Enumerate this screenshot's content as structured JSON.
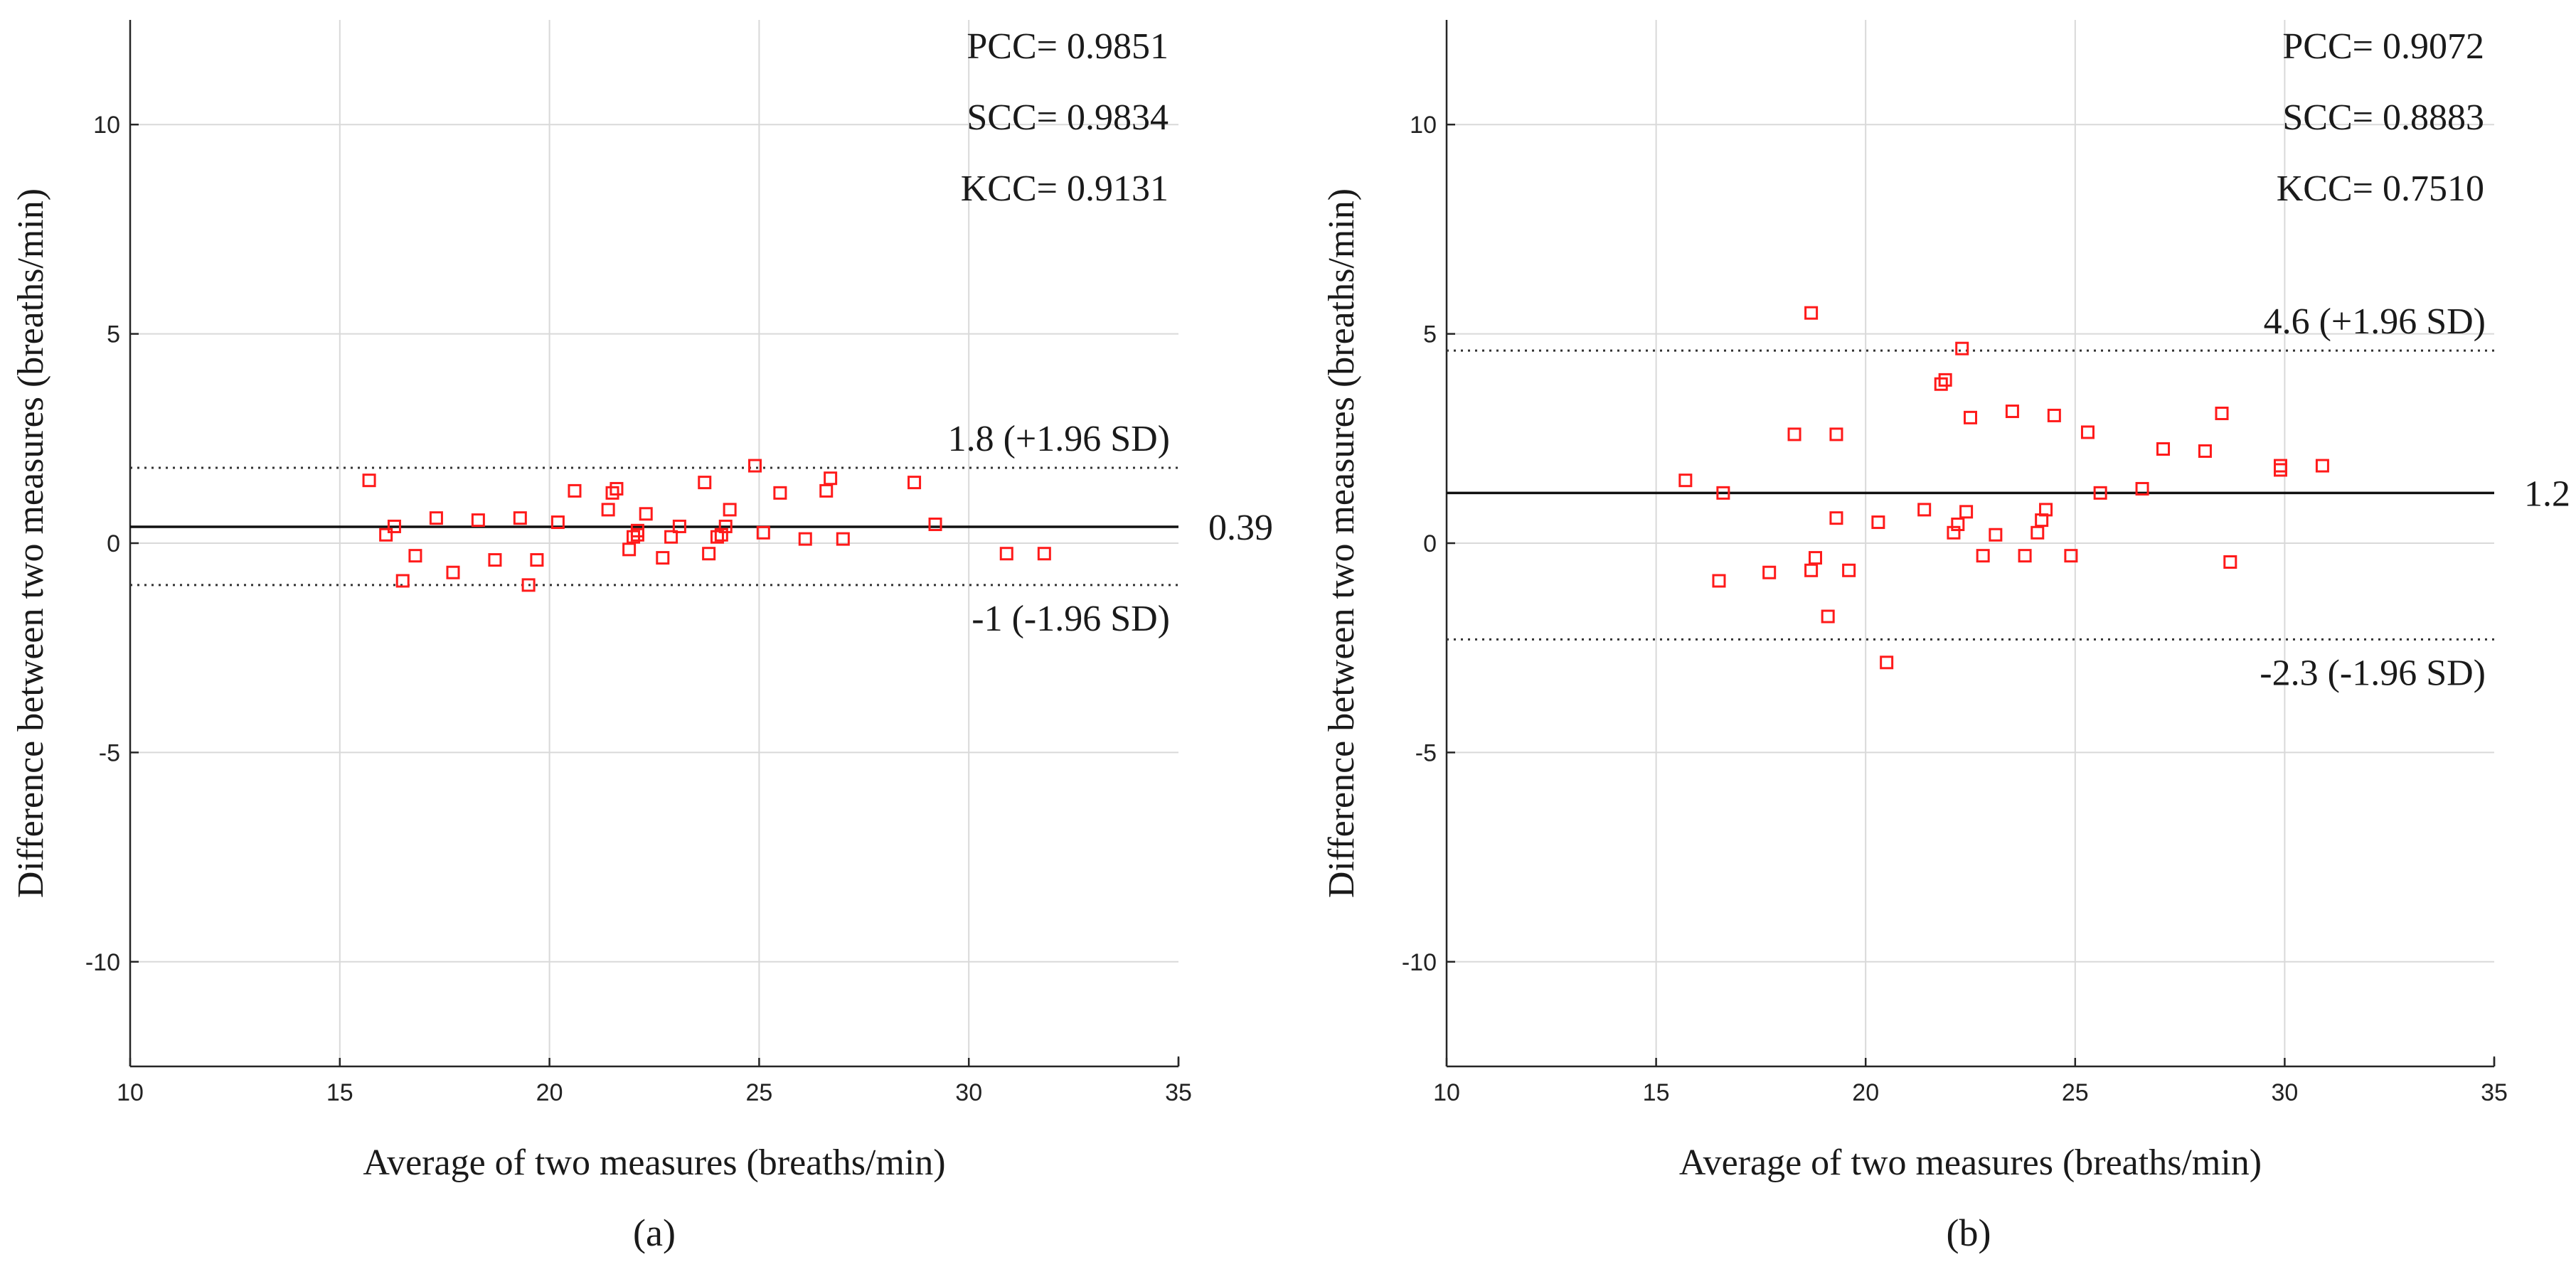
{
  "chart_data": [
    {
      "type": "scatter",
      "panel_label": "(a)",
      "xlabel": "Average of two measures (breaths/min)",
      "ylabel": "Difference between two measures (breaths/min)",
      "xlim": [
        10,
        35
      ],
      "ylim": [
        -12.5,
        12.5
      ],
      "xticks": [
        10,
        15,
        20,
        25,
        30,
        35
      ],
      "yticks": [
        -10,
        -5,
        0,
        5,
        10
      ],
      "grid": true,
      "stats": [
        "PCC= 0.9851",
        "SCC= 0.9834",
        "KCC= 0.9131"
      ],
      "mean": 0.39,
      "mean_label": "0.39",
      "upper_limit": 1.8,
      "upper_label": "1.8 (+1.96 SD)",
      "lower_limit": -1.0,
      "lower_label": "-1 (-1.96 SD)",
      "series": [
        {
          "name": "measurements",
          "color": "#ff1a1a",
          "x": [
            15.7,
            16.1,
            16.3,
            16.5,
            16.8,
            17.3,
            17.7,
            18.3,
            18.7,
            19.3,
            19.5,
            19.7,
            20.2,
            20.6,
            21.4,
            21.5,
            21.6,
            21.9,
            22.0,
            22.1,
            22.1,
            22.3,
            22.7,
            22.9,
            23.1,
            23.7,
            23.8,
            24.0,
            24.1,
            24.2,
            24.3,
            24.9,
            25.1,
            25.5,
            26.1,
            26.6,
            26.7,
            27.0,
            28.7,
            29.2,
            30.9,
            31.8
          ],
          "y": [
            1.5,
            0.2,
            0.4,
            -0.9,
            -0.3,
            0.6,
            -0.7,
            0.55,
            -0.4,
            0.6,
            -1.0,
            -0.4,
            0.5,
            1.25,
            0.8,
            1.2,
            1.3,
            -0.15,
            0.15,
            0.3,
            0.2,
            0.7,
            -0.35,
            0.15,
            0.4,
            1.45,
            -0.25,
            0.15,
            0.2,
            0.4,
            0.8,
            1.85,
            0.25,
            1.2,
            0.1,
            1.25,
            1.55,
            0.1,
            1.45,
            0.45,
            -0.25,
            -0.25
          ]
        }
      ]
    },
    {
      "type": "scatter",
      "panel_label": "(b)",
      "xlabel": "Average of two measures (breaths/min)",
      "ylabel": "Difference between two measures (breaths/min)",
      "xlim": [
        10,
        35
      ],
      "ylim": [
        -12.5,
        12.5
      ],
      "xticks": [
        10,
        15,
        20,
        25,
        30,
        35
      ],
      "yticks": [
        -10,
        -5,
        0,
        5,
        10
      ],
      "grid": true,
      "stats": [
        "PCC= 0.9072",
        "SCC= 0.8883",
        "KCC= 0.7510"
      ],
      "mean": 1.2,
      "mean_label": "1.2",
      "upper_limit": 4.6,
      "upper_label": "4.6 (+1.96 SD)",
      "lower_limit": -2.3,
      "lower_label": "-2.3 (-1.96 SD)",
      "series": [
        {
          "name": "measurements",
          "color": "#ff1a1a",
          "x": [
            15.7,
            16.5,
            16.6,
            17.7,
            18.3,
            18.7,
            18.7,
            18.8,
            19.1,
            19.3,
            19.3,
            19.6,
            20.3,
            20.5,
            21.4,
            21.8,
            21.9,
            22.1,
            22.2,
            22.3,
            22.4,
            22.5,
            22.8,
            23.1,
            23.5,
            23.8,
            24.1,
            24.2,
            24.3,
            24.5,
            24.9,
            25.3,
            25.6,
            26.6,
            27.1,
            28.1,
            28.5,
            28.7,
            29.9,
            29.9,
            30.9
          ],
          "y": [
            1.5,
            -0.9,
            1.2,
            -0.7,
            2.6,
            5.5,
            -0.65,
            -0.35,
            -1.75,
            2.6,
            0.6,
            -0.65,
            0.5,
            -2.85,
            0.8,
            3.8,
            3.9,
            0.25,
            0.45,
            4.65,
            0.75,
            3.0,
            -0.3,
            0.2,
            3.15,
            -0.3,
            0.25,
            0.55,
            0.8,
            3.05,
            -0.3,
            2.65,
            1.2,
            1.3,
            2.25,
            2.2,
            3.1,
            -0.45,
            1.85,
            1.75,
            1.85
          ]
        }
      ]
    }
  ]
}
